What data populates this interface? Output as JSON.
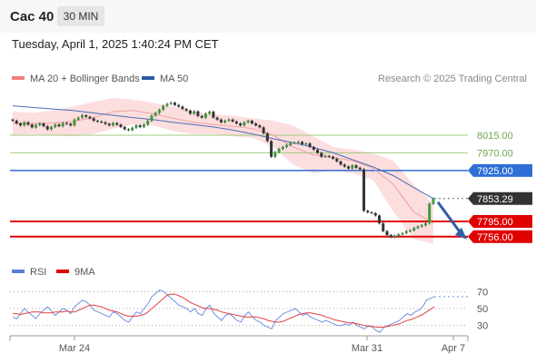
{
  "header": {
    "instrument": "Cac 40",
    "timeframe": "30 MIN",
    "timestamp": "Tuesday, April 1, 2025 1:40:24 PM CET"
  },
  "legend": {
    "items": [
      {
        "label": "MA 20 + Bollinger Bands",
        "color": "#f08080"
      },
      {
        "label": "MA 50",
        "color": "#2e5aa8"
      }
    ],
    "credit": "Research © 2025 Trading Central"
  },
  "rsi_legend": {
    "items": [
      {
        "label": "RSI",
        "color": "#5b7fd6"
      },
      {
        "label": "9MA",
        "color": "#e00000"
      }
    ]
  },
  "chart_data": [
    {
      "type": "candlestick",
      "ylim": [
        7730,
        8110
      ],
      "x_ticks": [
        "Mar 24",
        "Mar 31",
        "Apr 7"
      ],
      "price_levels": [
        {
          "value": 8015.0,
          "label": "8015.00",
          "kind": "resistance",
          "color": "#9ccc7a"
        },
        {
          "value": 7970.0,
          "label": "7970.00",
          "kind": "resistance",
          "color": "#9ccc7a"
        },
        {
          "value": 7925.0,
          "label": "7925.00",
          "kind": "pivot",
          "color": "#2f6fd6"
        },
        {
          "value": 7853.29,
          "label": "7853.29",
          "kind": "last",
          "color": "#333333"
        },
        {
          "value": 7795.0,
          "label": "7795.00",
          "kind": "support",
          "color": "#e00000"
        },
        {
          "value": 7756.0,
          "label": "7756.00",
          "kind": "support",
          "color": "#e00000"
        }
      ],
      "closes": [
        8052,
        8045,
        8040,
        8048,
        8042,
        8035,
        8041,
        8045,
        8038,
        8030,
        8036,
        8042,
        8038,
        8046,
        8044,
        8040,
        8055,
        8060,
        8066,
        8062,
        8058,
        8052,
        8050,
        8048,
        8044,
        8040,
        8046,
        8042,
        8036,
        8030,
        8028,
        8034,
        8040,
        8036,
        8042,
        8052,
        8065,
        8072,
        8080,
        8090,
        8095,
        8098,
        8092,
        8088,
        8082,
        8078,
        8070,
        8076,
        8064,
        8060,
        8070,
        8075,
        8060,
        8055,
        8048,
        8052,
        8055,
        8050,
        8045,
        8040,
        8048,
        8052,
        8045,
        8040,
        8035,
        8020,
        8000,
        7960,
        7972,
        7980,
        7985,
        7990,
        7995,
        7996,
        7998,
        7992,
        7994,
        7985,
        7978,
        7970,
        7960,
        7962,
        7960,
        7955,
        7948,
        7940,
        7935,
        7930,
        7938,
        7932,
        7928,
        7822,
        7818,
        7816,
        7810,
        7790,
        7770,
        7760,
        7755,
        7758,
        7762,
        7765,
        7770,
        7772,
        7778,
        7782,
        7785,
        7790,
        7840,
        7853.29
      ],
      "overlays": {
        "ma50": [
          8090,
          8086,
          8082,
          8078,
          8072,
          8066,
          8060,
          8055,
          8048,
          8042,
          8036,
          8028,
          8018,
          8006,
          7996,
          7984,
          7970,
          7952,
          7934,
          7912,
          7882,
          7853
        ],
        "ma20": [
          8046,
          8045,
          8046,
          8050,
          8060,
          8075,
          8078,
          8070,
          8058,
          8048,
          8042,
          8038,
          8032,
          8015,
          7985,
          7965,
          7958,
          7950,
          7930,
          7890,
          7820,
          7790
        ],
        "bb_upper": [
          8075,
          8072,
          8078,
          8088,
          8100,
          8110,
          8106,
          8098,
          8088,
          8075,
          8068,
          8065,
          8058,
          8052,
          8040,
          8012,
          7985,
          7978,
          7968,
          7950,
          7890,
          7840
        ],
        "bb_lower": [
          8015,
          8018,
          8015,
          8012,
          8018,
          8032,
          8042,
          8040,
          8026,
          8018,
          8018,
          8012,
          8008,
          7985,
          7940,
          7918,
          7925,
          7918,
          7900,
          7820,
          7750,
          7738
        ]
      },
      "forecast": {
        "from": 7853.29,
        "to": 7756.0
      }
    },
    {
      "type": "line",
      "name": "RSI panel",
      "ylim": [
        20,
        80
      ],
      "y_ticks": [
        70,
        50,
        30
      ],
      "series": [
        {
          "name": "RSI",
          "values": [
            40,
            38,
            44,
            50,
            46,
            42,
            38,
            44,
            48,
            52,
            47,
            42,
            46,
            50,
            48,
            44,
            52,
            56,
            60,
            58,
            54,
            48,
            46,
            44,
            42,
            40,
            46,
            44,
            40,
            36,
            34,
            40,
            46,
            44,
            50,
            56,
            64,
            68,
            72,
            70,
            66,
            62,
            58,
            54,
            52,
            50,
            46,
            50,
            44,
            42,
            50,
            54,
            44,
            40,
            36,
            42,
            44,
            40,
            36,
            34,
            42,
            46,
            40,
            36,
            34,
            30,
            28,
            26,
            36,
            40,
            44,
            46,
            48,
            50,
            46,
            42,
            44,
            40,
            38,
            36,
            34,
            36,
            34,
            32,
            30,
            30,
            32,
            30,
            34,
            30,
            28,
            26,
            30,
            28,
            24,
            22,
            28,
            30,
            32,
            34,
            36,
            40,
            44,
            42,
            46,
            48,
            52,
            60,
            62,
            64
          ]
        },
        {
          "name": "9MA",
          "values": [
            44,
            44,
            43,
            44,
            45,
            46,
            46,
            46,
            45,
            45,
            45,
            46,
            46,
            46,
            47,
            46,
            46,
            48,
            50,
            52,
            54,
            54,
            53,
            52,
            50,
            48,
            47,
            46,
            44,
            42,
            41,
            41,
            41,
            42,
            43,
            46,
            50,
            54,
            58,
            62,
            66,
            67,
            67,
            65,
            63,
            60,
            57,
            55,
            53,
            51,
            50,
            50,
            49,
            48,
            46,
            45,
            44,
            43,
            42,
            41,
            40,
            40,
            40,
            40,
            39,
            38,
            36,
            35,
            34,
            34,
            35,
            37,
            39,
            41,
            43,
            44,
            45,
            45,
            44,
            43,
            42,
            40,
            39,
            37,
            36,
            35,
            34,
            33,
            33,
            32,
            31,
            30,
            29,
            29,
            28,
            28,
            28,
            29,
            30,
            31,
            32,
            34,
            36,
            37,
            39,
            41,
            43,
            46,
            49,
            52
          ]
        }
      ]
    }
  ]
}
